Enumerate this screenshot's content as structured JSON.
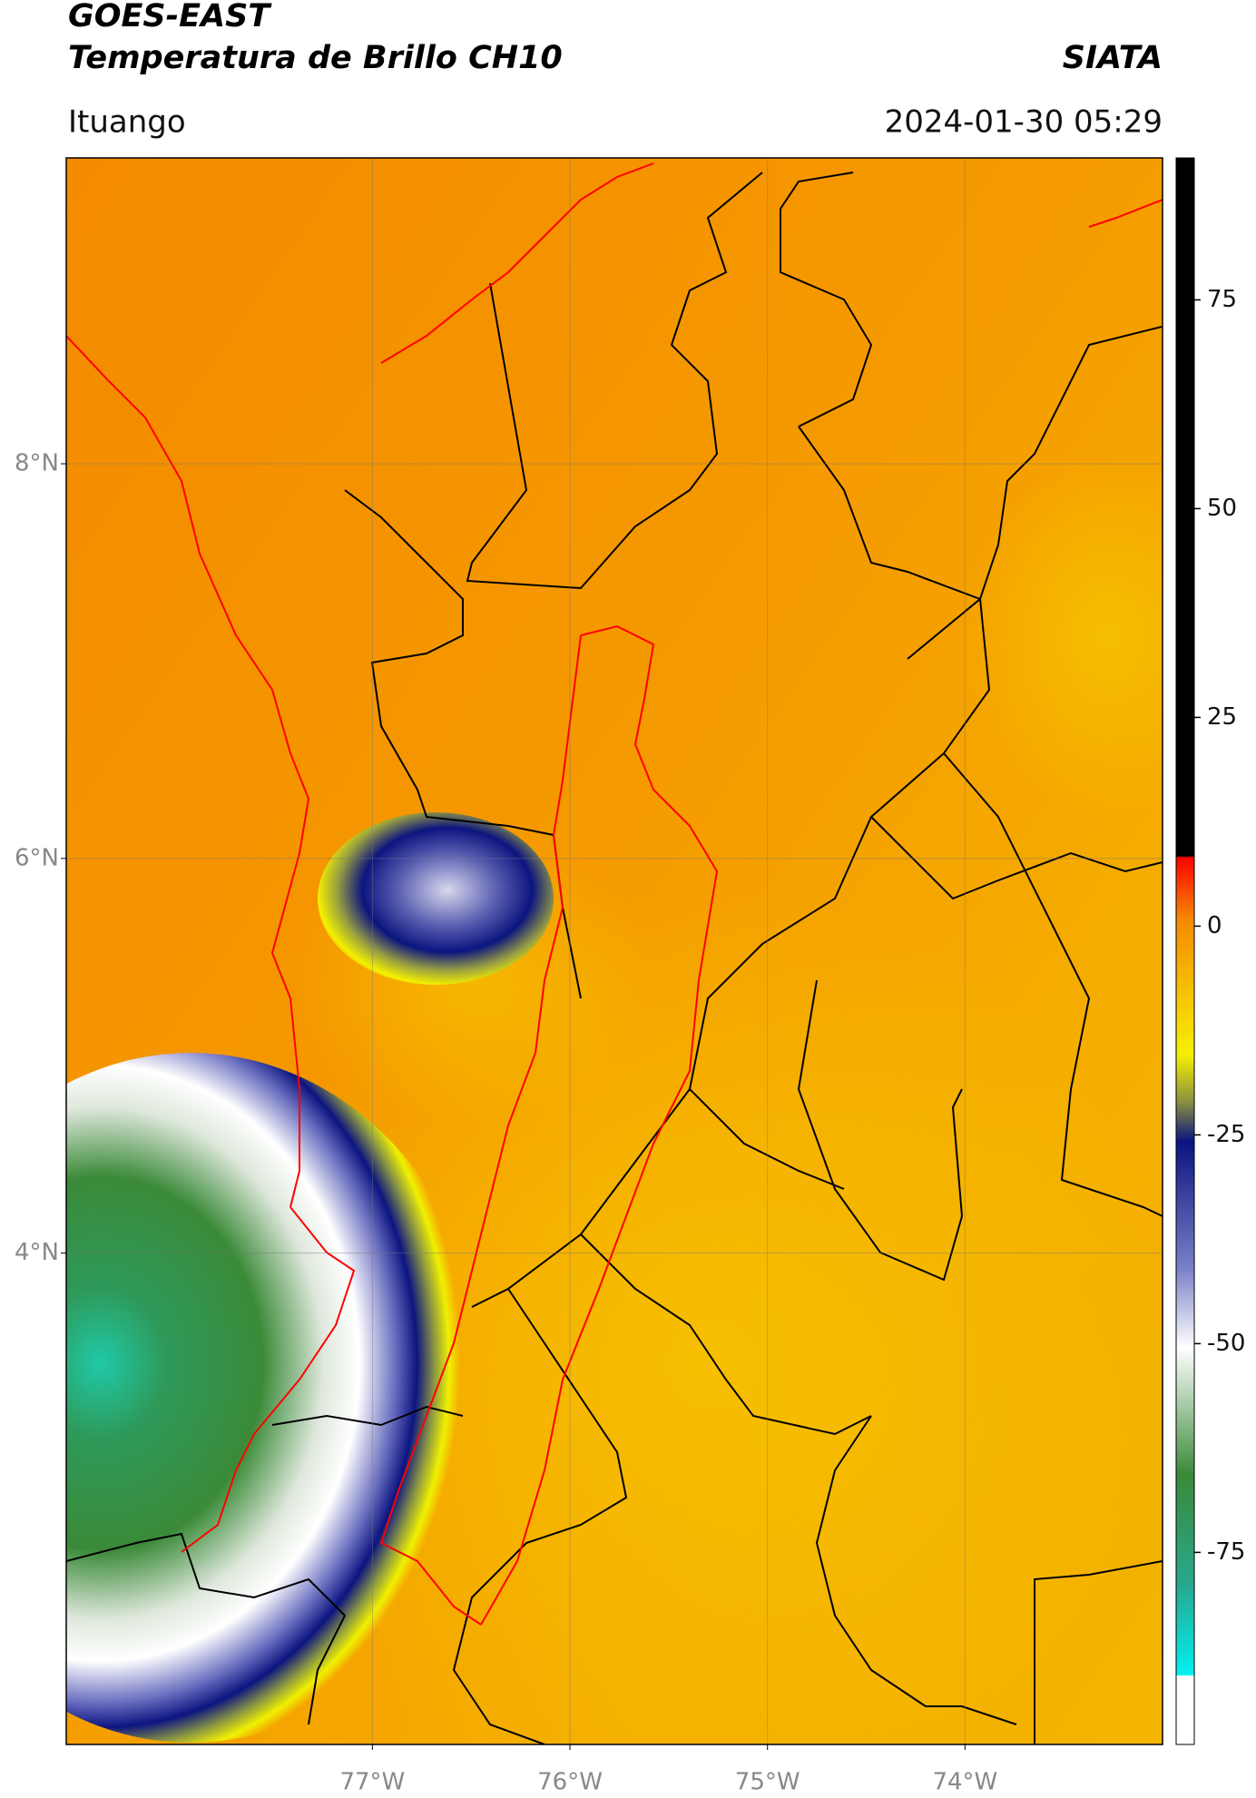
{
  "header": {
    "title": "GOES-EAST",
    "subtitle": "Temperatura de Brillo CH10",
    "brand": "SIATA",
    "region": "Ituango",
    "datetime": "2024-01-30 05:29"
  },
  "map": {
    "lon_range": [
      -78.55,
      -73.0
    ],
    "lat_range": [
      1.51,
      9.55
    ],
    "lat_ticks": [
      {
        "value": 8,
        "label": "8°N"
      },
      {
        "value": 6,
        "label": "6°N"
      },
      {
        "value": 4,
        "label": "4°N"
      }
    ],
    "lon_ticks": [
      {
        "value": -77,
        "label": "77°W"
      },
      {
        "value": -76,
        "label": "76°W"
      },
      {
        "value": -75,
        "label": "75°W"
      },
      {
        "value": -74,
        "label": "74°W"
      }
    ],
    "grid": true
  },
  "colorbar": {
    "lim": [
      -98,
      92
    ],
    "ticks": [
      75,
      50,
      25,
      0,
      -25,
      -50,
      -75
    ]
  }
}
